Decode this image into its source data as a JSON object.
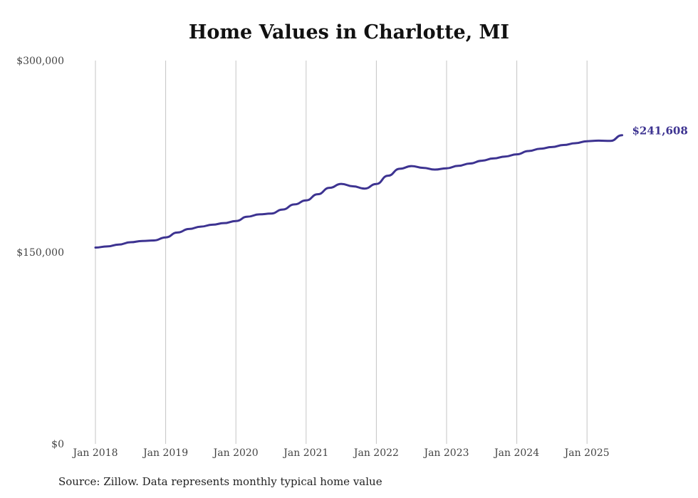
{
  "chart_data": {
    "type": "line",
    "title": "Home Values in Charlotte, MI",
    "source": "Source: Zillow. Data represents monthly typical home value",
    "y_ticks": [
      "$0",
      "$150,000",
      "$300,000"
    ],
    "ylim": [
      0,
      300000
    ],
    "x_ticks": [
      "Jan 2018",
      "Jan 2019",
      "Jan 2020",
      "Jan 2021",
      "Jan 2022",
      "Jan 2023",
      "Jan 2024",
      "Jan 2025"
    ],
    "grid": "vertical",
    "last_value_label": "$241,608",
    "colors": {
      "line": "#3d3391"
    },
    "series": [
      {
        "x": [
          "2018-01",
          "2018-03",
          "2018-05",
          "2018-07",
          "2018-09",
          "2018-11",
          "2019-01",
          "2019-03",
          "2019-05",
          "2019-07",
          "2019-09",
          "2019-11",
          "2020-01",
          "2020-03",
          "2020-05",
          "2020-07",
          "2020-09",
          "2020-11",
          "2021-01",
          "2021-03",
          "2021-05",
          "2021-07",
          "2021-09",
          "2021-11",
          "2022-01",
          "2022-03",
          "2022-05",
          "2022-07",
          "2022-09",
          "2022-11",
          "2023-01",
          "2023-03",
          "2023-05",
          "2023-07",
          "2023-09",
          "2023-11",
          "2024-01",
          "2024-03",
          "2024-05",
          "2024-07",
          "2024-09",
          "2024-11",
          "2025-01",
          "2025-03",
          "2025-05",
          "2025-07"
        ],
        "y": [
          153600,
          154500,
          156000,
          157800,
          158800,
          159200,
          161600,
          165400,
          168200,
          170000,
          171500,
          172800,
          174400,
          177800,
          179600,
          180200,
          183400,
          187400,
          190600,
          195400,
          200400,
          203500,
          201600,
          199800,
          203400,
          209900,
          215300,
          217400,
          216000,
          214700,
          215700,
          217600,
          219400,
          221600,
          223400,
          224900,
          226600,
          229200,
          231000,
          232300,
          233900,
          235300,
          236900,
          237300,
          237100,
          241608
        ]
      }
    ]
  }
}
